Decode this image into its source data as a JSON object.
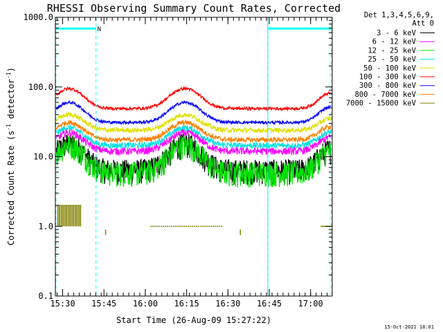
{
  "chart_data": {
    "type": "line",
    "title": "RHESSI Observing Summary Count Rates, Corrected",
    "xlabel": "Start Time (26-Aug-09 15:27:22)",
    "ylabel": "Corrected Count Rate (s",
    "ylabel_sup": "-1",
    "ylabel_mid": " detector",
    "ylabel_sup2": "-1",
    "ylabel_end": ")",
    "y_scale": "log",
    "ylim": [
      0.1,
      1000
    ],
    "y_ticks": [
      {
        "value": 0.1,
        "label": "0.1"
      },
      {
        "value": 1,
        "label": "1.0"
      },
      {
        "value": 10,
        "label": "10.0"
      },
      {
        "value": 100,
        "label": "100.0"
      },
      {
        "value": 1000,
        "label": "1000.0"
      }
    ],
    "xlim": [
      15.456,
      17.131
    ],
    "x_ticks": [
      {
        "value": 15.5,
        "label": "15:30"
      },
      {
        "value": 15.75,
        "label": "15:45"
      },
      {
        "value": 16.0,
        "label": "16:00"
      },
      {
        "value": 16.25,
        "label": "16:15"
      },
      {
        "value": 16.5,
        "label": "16:30"
      },
      {
        "value": 16.75,
        "label": "16:45"
      },
      {
        "value": 17.0,
        "label": "17:00"
      }
    ],
    "legend_header": [
      "Det 1,3,4,5,6,9,",
      "Att 0"
    ],
    "legend_position": "right",
    "series": [
      {
        "name": "3 - 6 keV",
        "color": "#000000",
        "base": 6.5,
        "amp": 9.0,
        "noise": 0.4
      },
      {
        "name": "6 - 12 keV",
        "color": "#ff00ff",
        "base": 12.0,
        "amp": 10.0,
        "noise": 0.12
      },
      {
        "name": "12 - 25 keV",
        "color": "#00e000",
        "base": 6.0,
        "amp": 9.0,
        "noise": 0.4
      },
      {
        "name": "25 - 50 keV",
        "color": "#00e0e0",
        "base": 14.5,
        "amp": 11.5,
        "noise": 0.1
      },
      {
        "name": "50 - 100 keV",
        "color": "#e0e000",
        "base": 24.0,
        "amp": 16.0,
        "noise": 0.08
      },
      {
        "name": "100 - 300 keV",
        "color": "#ff0000",
        "base": 49.0,
        "amp": 46.0,
        "noise": 0.05
      },
      {
        "name": "300 - 800 keV",
        "color": "#0000ff",
        "base": 31.0,
        "amp": 29.0,
        "noise": 0.05
      },
      {
        "name": "800 - 7000 keV",
        "color": "#ff8000",
        "base": 17.5,
        "amp": 13.5,
        "noise": 0.08
      },
      {
        "name": "7000 - 15000 keV",
        "color": "#808000",
        "base": 1.0,
        "amp": 0.0,
        "noise": 0.0
      }
    ],
    "saa_intervals": [
      [
        15.456,
        15.468
      ],
      [
        16.741,
        17.125
      ]
    ],
    "night_intervals": [
      [
        15.459,
        15.702
      ],
      [
        16.74,
        17.125
      ]
    ],
    "annotations": [
      {
        "text": "N",
        "x": 15.71,
        "y": 690
      }
    ]
  },
  "footer": {
    "timestamp": "15-Oct-2021 18:01"
  },
  "colors": {
    "frame": "#000000",
    "saa": "#00ffff",
    "night": "#00ffff"
  }
}
